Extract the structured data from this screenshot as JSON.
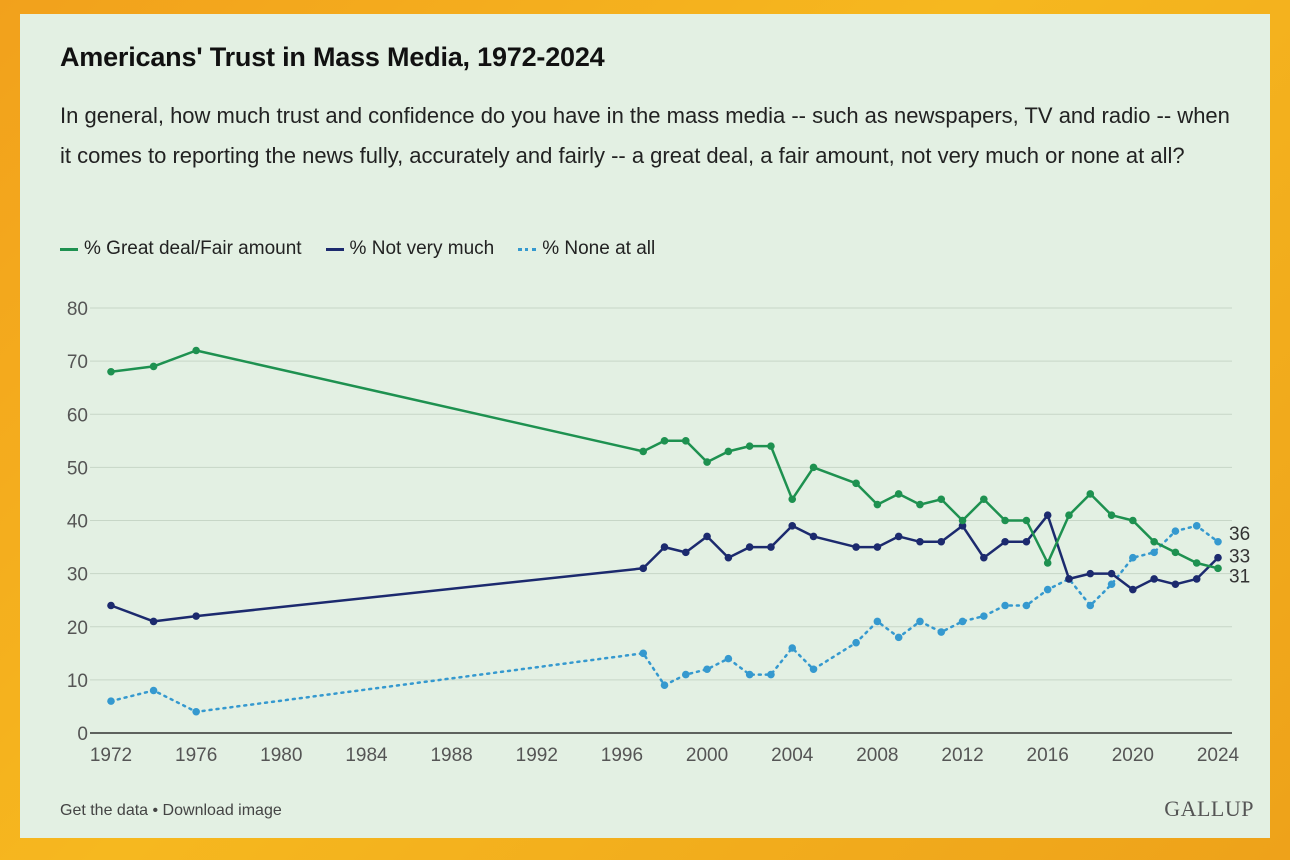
{
  "chart_data": {
    "type": "line",
    "title": "Americans' Trust in Mass Media, 1972-2024",
    "subtitle": "In general, how much trust and confidence do you have in the mass media -- such as newspapers, TV and radio -- when it comes to reporting the news fully, accurately and fairly -- a great deal, a fair amount, not very much or none at all?",
    "xlim": [
      1972,
      2024
    ],
    "ylim": [
      0,
      80
    ],
    "x_ticks": [
      1972,
      1976,
      1980,
      1984,
      1988,
      1992,
      1996,
      2000,
      2004,
      2008,
      2012,
      2016,
      2020,
      2024
    ],
    "y_ticks": [
      0,
      10,
      20,
      30,
      40,
      50,
      60,
      70,
      80
    ],
    "grid": "horizontal",
    "legend_position": "top-left",
    "series": [
      {
        "name": "% Great deal/Fair amount",
        "color": "#1e9150",
        "style": "solid",
        "end_label": "31",
        "x": [
          1972,
          1974,
          1976,
          1997,
          1998,
          1999,
          2000,
          2001,
          2002,
          2003,
          2004,
          2005,
          2007,
          2008,
          2009,
          2010,
          2011,
          2012,
          2013,
          2014,
          2015,
          2016,
          2017,
          2018,
          2019,
          2020,
          2021,
          2022,
          2023,
          2024
        ],
        "y": [
          68,
          69,
          72,
          53,
          55,
          55,
          51,
          53,
          54,
          54,
          44,
          50,
          47,
          43,
          45,
          43,
          44,
          40,
          44,
          40,
          40,
          32,
          41,
          45,
          41,
          40,
          36,
          34,
          32,
          31
        ]
      },
      {
        "name": "% Not very much",
        "color": "#1c2a6e",
        "style": "solid",
        "end_label": "33",
        "x": [
          1972,
          1974,
          1976,
          1997,
          1998,
          1999,
          2000,
          2001,
          2002,
          2003,
          2004,
          2005,
          2007,
          2008,
          2009,
          2010,
          2011,
          2012,
          2013,
          2014,
          2015,
          2016,
          2017,
          2018,
          2019,
          2020,
          2021,
          2022,
          2023,
          2024
        ],
        "y": [
          24,
          21,
          22,
          31,
          35,
          34,
          37,
          33,
          35,
          35,
          39,
          37,
          35,
          35,
          37,
          36,
          36,
          39,
          33,
          36,
          36,
          41,
          29,
          30,
          30,
          27,
          29,
          28,
          29,
          33
        ]
      },
      {
        "name": "% None at all",
        "color": "#3599cf",
        "style": "dotted",
        "end_label": "36",
        "x": [
          1972,
          1974,
          1976,
          1997,
          1998,
          1999,
          2000,
          2001,
          2002,
          2003,
          2004,
          2005,
          2007,
          2008,
          2009,
          2010,
          2011,
          2012,
          2013,
          2014,
          2015,
          2016,
          2017,
          2018,
          2019,
          2020,
          2021,
          2022,
          2023,
          2024
        ],
        "y": [
          6,
          8,
          4,
          15,
          9,
          11,
          12,
          14,
          11,
          11,
          16,
          12,
          17,
          21,
          18,
          21,
          19,
          21,
          22,
          24,
          24,
          27,
          29,
          24,
          28,
          33,
          34,
          38,
          39,
          36
        ]
      }
    ]
  },
  "footer": {
    "links": "Get the data • Download image",
    "logo": "GALLUP"
  }
}
